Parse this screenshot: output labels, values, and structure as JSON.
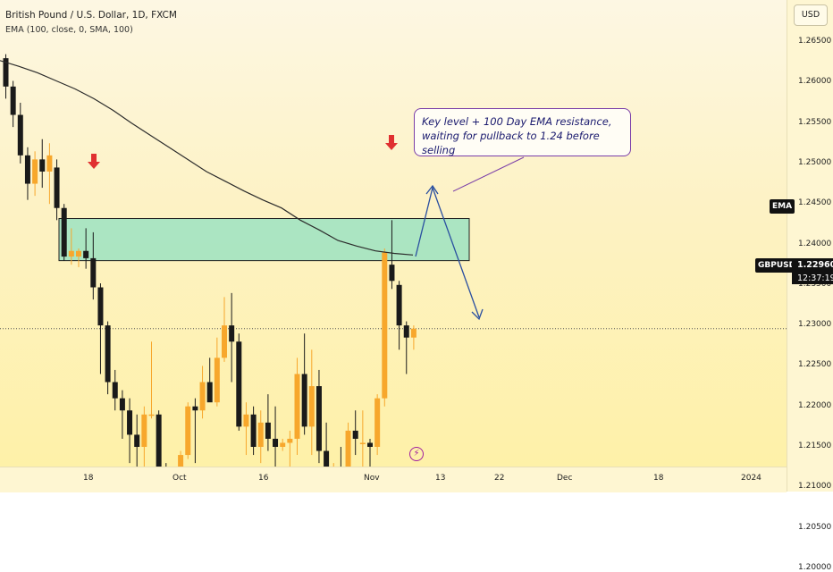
{
  "legend": {
    "title": "British Pound / U.S. Dollar, 1D, FXCM",
    "indicator": "EMA (100, close, 0, SMA, 100)"
  },
  "axis": {
    "currency_button": "USD",
    "price_ticks": [
      "1.26500",
      "1.26000",
      "1.25500",
      "1.25000",
      "1.24500",
      "1.24000",
      "1.23500",
      "1.23000",
      "1.22500",
      "1.22000",
      "1.21500",
      "1.21000",
      "1.20500",
      "1.20000"
    ],
    "time_ticks": [
      "18",
      "Oct",
      "16",
      "Nov",
      "13",
      "22",
      "Dec",
      "18",
      "2024"
    ]
  },
  "labels": {
    "ema_tag": "EMA",
    "symbol_tag": "GBPUSD",
    "last_price": "1.22960",
    "countdown": "12:37:19"
  },
  "annotation": {
    "line1": "Key level + 100 Day EMA resistance,",
    "line2": "waiting for pullback to 1.24 before selling"
  },
  "colors": {
    "bull": "#f7a72c",
    "bear": "#1a1a1a",
    "zone_fill": "#8fe0c2",
    "arrow_red": "#e03030",
    "projection": "#2a4fa0",
    "ema_line": "#2b2b2b"
  },
  "chart_data": {
    "type": "candlestick",
    "symbol": "GBPUSD",
    "timeframe": "1D",
    "ylim": [
      1.2,
      1.267
    ],
    "resistance_zone": [
      1.238,
      1.2432
    ],
    "last_price": 1.2296,
    "candles": [
      {
        "o": 1.263,
        "h": 1.2635,
        "l": 1.258,
        "c": 1.2595
      },
      {
        "o": 1.2595,
        "h": 1.2602,
        "l": 1.2545,
        "c": 1.256
      },
      {
        "o": 1.256,
        "h": 1.2575,
        "l": 1.25,
        "c": 1.251
      },
      {
        "o": 1.251,
        "h": 1.252,
        "l": 1.2455,
        "c": 1.2475
      },
      {
        "o": 1.2475,
        "h": 1.2515,
        "l": 1.246,
        "c": 1.2505
      },
      {
        "o": 1.2505,
        "h": 1.253,
        "l": 1.247,
        "c": 1.249
      },
      {
        "o": 1.249,
        "h": 1.2525,
        "l": 1.245,
        "c": 1.251
      },
      {
        "o": 1.2495,
        "h": 1.2505,
        "l": 1.243,
        "c": 1.2445
      },
      {
        "o": 1.2445,
        "h": 1.245,
        "l": 1.238,
        "c": 1.2385
      },
      {
        "o": 1.2385,
        "h": 1.242,
        "l": 1.2375,
        "c": 1.2392
      },
      {
        "o": 1.2385,
        "h": 1.2395,
        "l": 1.2372,
        "c": 1.2392
      },
      {
        "o": 1.2392,
        "h": 1.242,
        "l": 1.237,
        "c": 1.2383
      },
      {
        "o": 1.2383,
        "h": 1.2415,
        "l": 1.2332,
        "c": 1.2347
      },
      {
        "o": 1.2347,
        "h": 1.2352,
        "l": 1.224,
        "c": 1.23
      },
      {
        "o": 1.23,
        "h": 1.2305,
        "l": 1.2215,
        "c": 1.223
      },
      {
        "o": 1.223,
        "h": 1.2245,
        "l": 1.2195,
        "c": 1.221
      },
      {
        "o": 1.221,
        "h": 1.222,
        "l": 1.216,
        "c": 1.2195
      },
      {
        "o": 1.2195,
        "h": 1.221,
        "l": 1.213,
        "c": 1.2165
      },
      {
        "o": 1.2165,
        "h": 1.219,
        "l": 1.2125,
        "c": 1.215
      },
      {
        "o": 1.215,
        "h": 1.22,
        "l": 1.2125,
        "c": 1.219
      },
      {
        "o": 1.219,
        "h": 1.228,
        "l": 1.2185,
        "c": 1.219
      },
      {
        "o": 1.219,
        "h": 1.2195,
        "l": 1.21,
        "c": 1.211
      },
      {
        "o": 1.211,
        "h": 1.213,
        "l": 1.2055,
        "c": 1.2065
      },
      {
        "o": 1.2065,
        "h": 1.21,
        "l": 1.2045,
        "c": 1.208
      },
      {
        "o": 1.2075,
        "h": 1.2145,
        "l": 1.204,
        "c": 1.214
      },
      {
        "o": 1.214,
        "h": 1.2205,
        "l": 1.2135,
        "c": 1.22
      },
      {
        "o": 1.22,
        "h": 1.221,
        "l": 1.213,
        "c": 1.2195
      },
      {
        "o": 1.2195,
        "h": 1.225,
        "l": 1.2185,
        "c": 1.223
      },
      {
        "o": 1.223,
        "h": 1.226,
        "l": 1.221,
        "c": 1.2205
      },
      {
        "o": 1.2205,
        "h": 1.2285,
        "l": 1.22,
        "c": 1.226
      },
      {
        "o": 1.226,
        "h": 1.2335,
        "l": 1.2255,
        "c": 1.23
      },
      {
        "o": 1.23,
        "h": 1.234,
        "l": 1.223,
        "c": 1.228
      },
      {
        "o": 1.228,
        "h": 1.229,
        "l": 1.217,
        "c": 1.2175
      },
      {
        "o": 1.2175,
        "h": 1.2205,
        "l": 1.214,
        "c": 1.219
      },
      {
        "o": 1.219,
        "h": 1.22,
        "l": 1.214,
        "c": 1.215
      },
      {
        "o": 1.215,
        "h": 1.2195,
        "l": 1.213,
        "c": 1.218
      },
      {
        "o": 1.218,
        "h": 1.2215,
        "l": 1.2145,
        "c": 1.216
      },
      {
        "o": 1.216,
        "h": 1.22,
        "l": 1.2105,
        "c": 1.215
      },
      {
        "o": 1.215,
        "h": 1.216,
        "l": 1.2145,
        "c": 1.2155
      },
      {
        "o": 1.2155,
        "h": 1.217,
        "l": 1.212,
        "c": 1.216
      },
      {
        "o": 1.216,
        "h": 1.226,
        "l": 1.214,
        "c": 1.224
      },
      {
        "o": 1.224,
        "h": 1.229,
        "l": 1.2165,
        "c": 1.2175
      },
      {
        "o": 1.2175,
        "h": 1.227,
        "l": 1.214,
        "c": 1.2225
      },
      {
        "o": 1.2225,
        "h": 1.2245,
        "l": 1.213,
        "c": 1.2145
      },
      {
        "o": 1.2145,
        "h": 1.218,
        "l": 1.2065,
        "c": 1.211
      },
      {
        "o": 1.211,
        "h": 1.213,
        "l": 1.2095,
        "c": 1.2125
      },
      {
        "o": 1.2125,
        "h": 1.215,
        "l": 1.21,
        "c": 1.212
      },
      {
        "o": 1.212,
        "h": 1.218,
        "l": 1.2115,
        "c": 1.217
      },
      {
        "o": 1.217,
        "h": 1.2195,
        "l": 1.214,
        "c": 1.216
      },
      {
        "o": 1.2155,
        "h": 1.2195,
        "l": 1.2095,
        "c": 1.2155
      },
      {
        "o": 1.2155,
        "h": 1.216,
        "l": 1.2085,
        "c": 1.215
      },
      {
        "o": 1.215,
        "h": 1.2215,
        "l": 1.214,
        "c": 1.221
      },
      {
        "o": 1.221,
        "h": 1.2395,
        "l": 1.22,
        "c": 1.239
      },
      {
        "o": 1.2375,
        "h": 1.243,
        "l": 1.2345,
        "c": 1.2355
      },
      {
        "o": 1.235,
        "h": 1.2355,
        "l": 1.227,
        "c": 1.23
      },
      {
        "o": 1.23,
        "h": 1.2305,
        "l": 1.224,
        "c": 1.2285
      },
      {
        "o": 1.2285,
        "h": 1.23,
        "l": 1.227,
        "c": 1.2296
      }
    ],
    "ema": [
      1.2627,
      1.262,
      1.2612,
      1.2602,
      1.2592,
      1.258,
      1.2566,
      1.255,
      1.2535,
      1.252,
      1.2505,
      1.249,
      1.2478,
      1.2466,
      1.2455,
      1.2445,
      1.243,
      1.2418,
      1.2405,
      1.2398,
      1.2392,
      1.2389,
      1.2387
    ]
  }
}
